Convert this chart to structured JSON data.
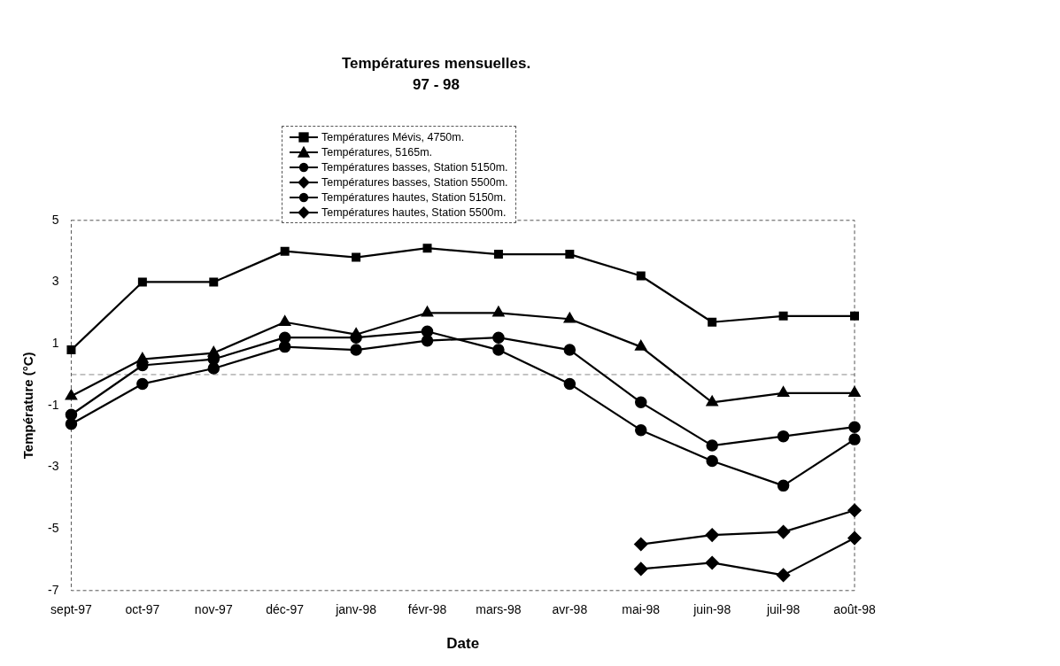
{
  "chart_data": {
    "type": "line",
    "title": "Températures mensuelles.",
    "subtitle": "97 - 98",
    "xlabel": "Date",
    "ylabel": "Température (°C)",
    "categories": [
      "sept-97",
      "oct-97",
      "nov-97",
      "déc-97",
      "janv-98",
      "févr-98",
      "mars-98",
      "avr-98",
      "mai-98",
      "juin-98",
      "juil-98",
      "août-98"
    ],
    "ylim": [
      -7,
      5
    ],
    "yticks": [
      -7,
      -5,
      -3,
      -1,
      1,
      3,
      5
    ],
    "grid": false,
    "legend": "top",
    "line_style": "solid",
    "ref_lines": [
      {
        "axis": "y",
        "value": 0,
        "color": "#888888",
        "line_style": "dashed"
      }
    ],
    "series": [
      {
        "name": "Températures Mévis, 4750m.",
        "color": "#000000",
        "marker": "square",
        "values": [
          0.8,
          3.0,
          3.0,
          4.0,
          3.8,
          4.1,
          3.9,
          3.9,
          3.2,
          1.7,
          1.9,
          1.9
        ]
      },
      {
        "name": "Températures, 5165m.",
        "color": "#000000",
        "marker": "triangle",
        "values": [
          -0.7,
          0.5,
          0.7,
          1.7,
          1.3,
          2.0,
          2.0,
          1.8,
          0.9,
          -0.9,
          -0.6,
          -0.6
        ]
      },
      {
        "name": "Températures basses, Station 5150m.",
        "color": "#000000",
        "marker": "circle",
        "values": [
          -1.3,
          0.3,
          0.5,
          1.2,
          1.2,
          1.4,
          0.8,
          -0.3,
          -1.8,
          -2.8,
          -3.6,
          -2.1
        ]
      },
      {
        "name": "Températures basses, Station 5500m.",
        "color": "#000000",
        "marker": "diamond",
        "values": [
          null,
          null,
          null,
          null,
          null,
          null,
          null,
          null,
          -6.3,
          -6.1,
          -6.5,
          -5.3
        ]
      },
      {
        "name": "Températures hautes, Station 5150m.",
        "color": "#000000",
        "marker": "circle",
        "values": [
          -1.6,
          -0.3,
          0.2,
          0.9,
          0.8,
          1.1,
          1.2,
          0.8,
          -0.9,
          -2.3,
          -2.0,
          -1.7
        ]
      },
      {
        "name": "Températures hautes, Station 5500m.",
        "color": "#000000",
        "marker": "diamond",
        "values": [
          null,
          null,
          null,
          null,
          null,
          null,
          null,
          null,
          -5.5,
          -5.2,
          -5.1,
          -4.4
        ]
      }
    ]
  }
}
